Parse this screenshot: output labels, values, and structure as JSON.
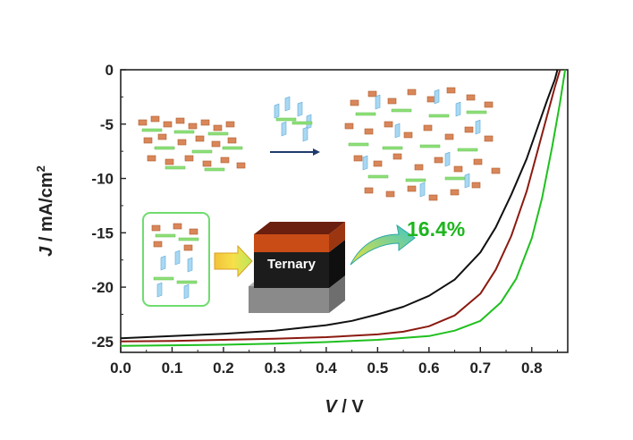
{
  "chart_data": {
    "type": "line",
    "title": "",
    "xlabel": {
      "symbol": "V",
      "unit": " / V"
    },
    "ylabel": {
      "symbol": "J",
      "unit": " / mA/cm",
      "sup": "2"
    },
    "xlim": [
      0.0,
      0.87
    ],
    "ylim": [
      -26,
      0
    ],
    "xticks": [
      "0.0",
      "0.1",
      "0.2",
      "0.3",
      "0.4",
      "0.5",
      "0.6",
      "0.7",
      "0.8"
    ],
    "yticks": [
      "0",
      "-5",
      "-10",
      "-15",
      "-20",
      "-25"
    ],
    "grid": false,
    "legend": "none",
    "series": [
      {
        "color": "#111111",
        "points": [
          [
            0.0,
            -24.7
          ],
          [
            0.1,
            -24.5
          ],
          [
            0.2,
            -24.3
          ],
          [
            0.3,
            -24.0
          ],
          [
            0.4,
            -23.5
          ],
          [
            0.45,
            -23.1
          ],
          [
            0.5,
            -22.5
          ],
          [
            0.55,
            -21.8
          ],
          [
            0.6,
            -20.8
          ],
          [
            0.65,
            -19.3
          ],
          [
            0.7,
            -16.8
          ],
          [
            0.73,
            -14.5
          ],
          [
            0.76,
            -11.5
          ],
          [
            0.79,
            -8.2
          ],
          [
            0.81,
            -5.5
          ],
          [
            0.83,
            -2.8
          ],
          [
            0.845,
            -0.9
          ],
          [
            0.85,
            0.0
          ]
        ]
      },
      {
        "color": "#8b1a10",
        "points": [
          [
            0.0,
            -25.0
          ],
          [
            0.1,
            -24.95
          ],
          [
            0.2,
            -24.85
          ],
          [
            0.3,
            -24.75
          ],
          [
            0.4,
            -24.6
          ],
          [
            0.5,
            -24.35
          ],
          [
            0.55,
            -24.1
          ],
          [
            0.6,
            -23.6
          ],
          [
            0.65,
            -22.6
          ],
          [
            0.7,
            -20.6
          ],
          [
            0.73,
            -18.4
          ],
          [
            0.76,
            -15.3
          ],
          [
            0.79,
            -11.2
          ],
          [
            0.81,
            -7.7
          ],
          [
            0.83,
            -4.2
          ],
          [
            0.845,
            -1.6
          ],
          [
            0.855,
            0.0
          ]
        ]
      },
      {
        "color": "#1fc01f",
        "points": [
          [
            0.0,
            -25.4
          ],
          [
            0.1,
            -25.35
          ],
          [
            0.2,
            -25.3
          ],
          [
            0.3,
            -25.2
          ],
          [
            0.4,
            -25.05
          ],
          [
            0.5,
            -24.85
          ],
          [
            0.6,
            -24.5
          ],
          [
            0.65,
            -24.0
          ],
          [
            0.7,
            -23.1
          ],
          [
            0.74,
            -21.4
          ],
          [
            0.77,
            -19.2
          ],
          [
            0.8,
            -15.5
          ],
          [
            0.82,
            -11.8
          ],
          [
            0.84,
            -7.0
          ],
          [
            0.855,
            -3.0
          ],
          [
            0.865,
            0.0
          ]
        ]
      }
    ],
    "annotations": {
      "efficiency": "16.4%",
      "device_layer": "Ternary"
    }
  },
  "colors": {
    "efficiency_text": "#1db51d",
    "device_top": "#c94c16",
    "device_mid": "#1c1c1c",
    "device_base": "#8a8a8a",
    "blend_frame": "#6fdc6f"
  }
}
